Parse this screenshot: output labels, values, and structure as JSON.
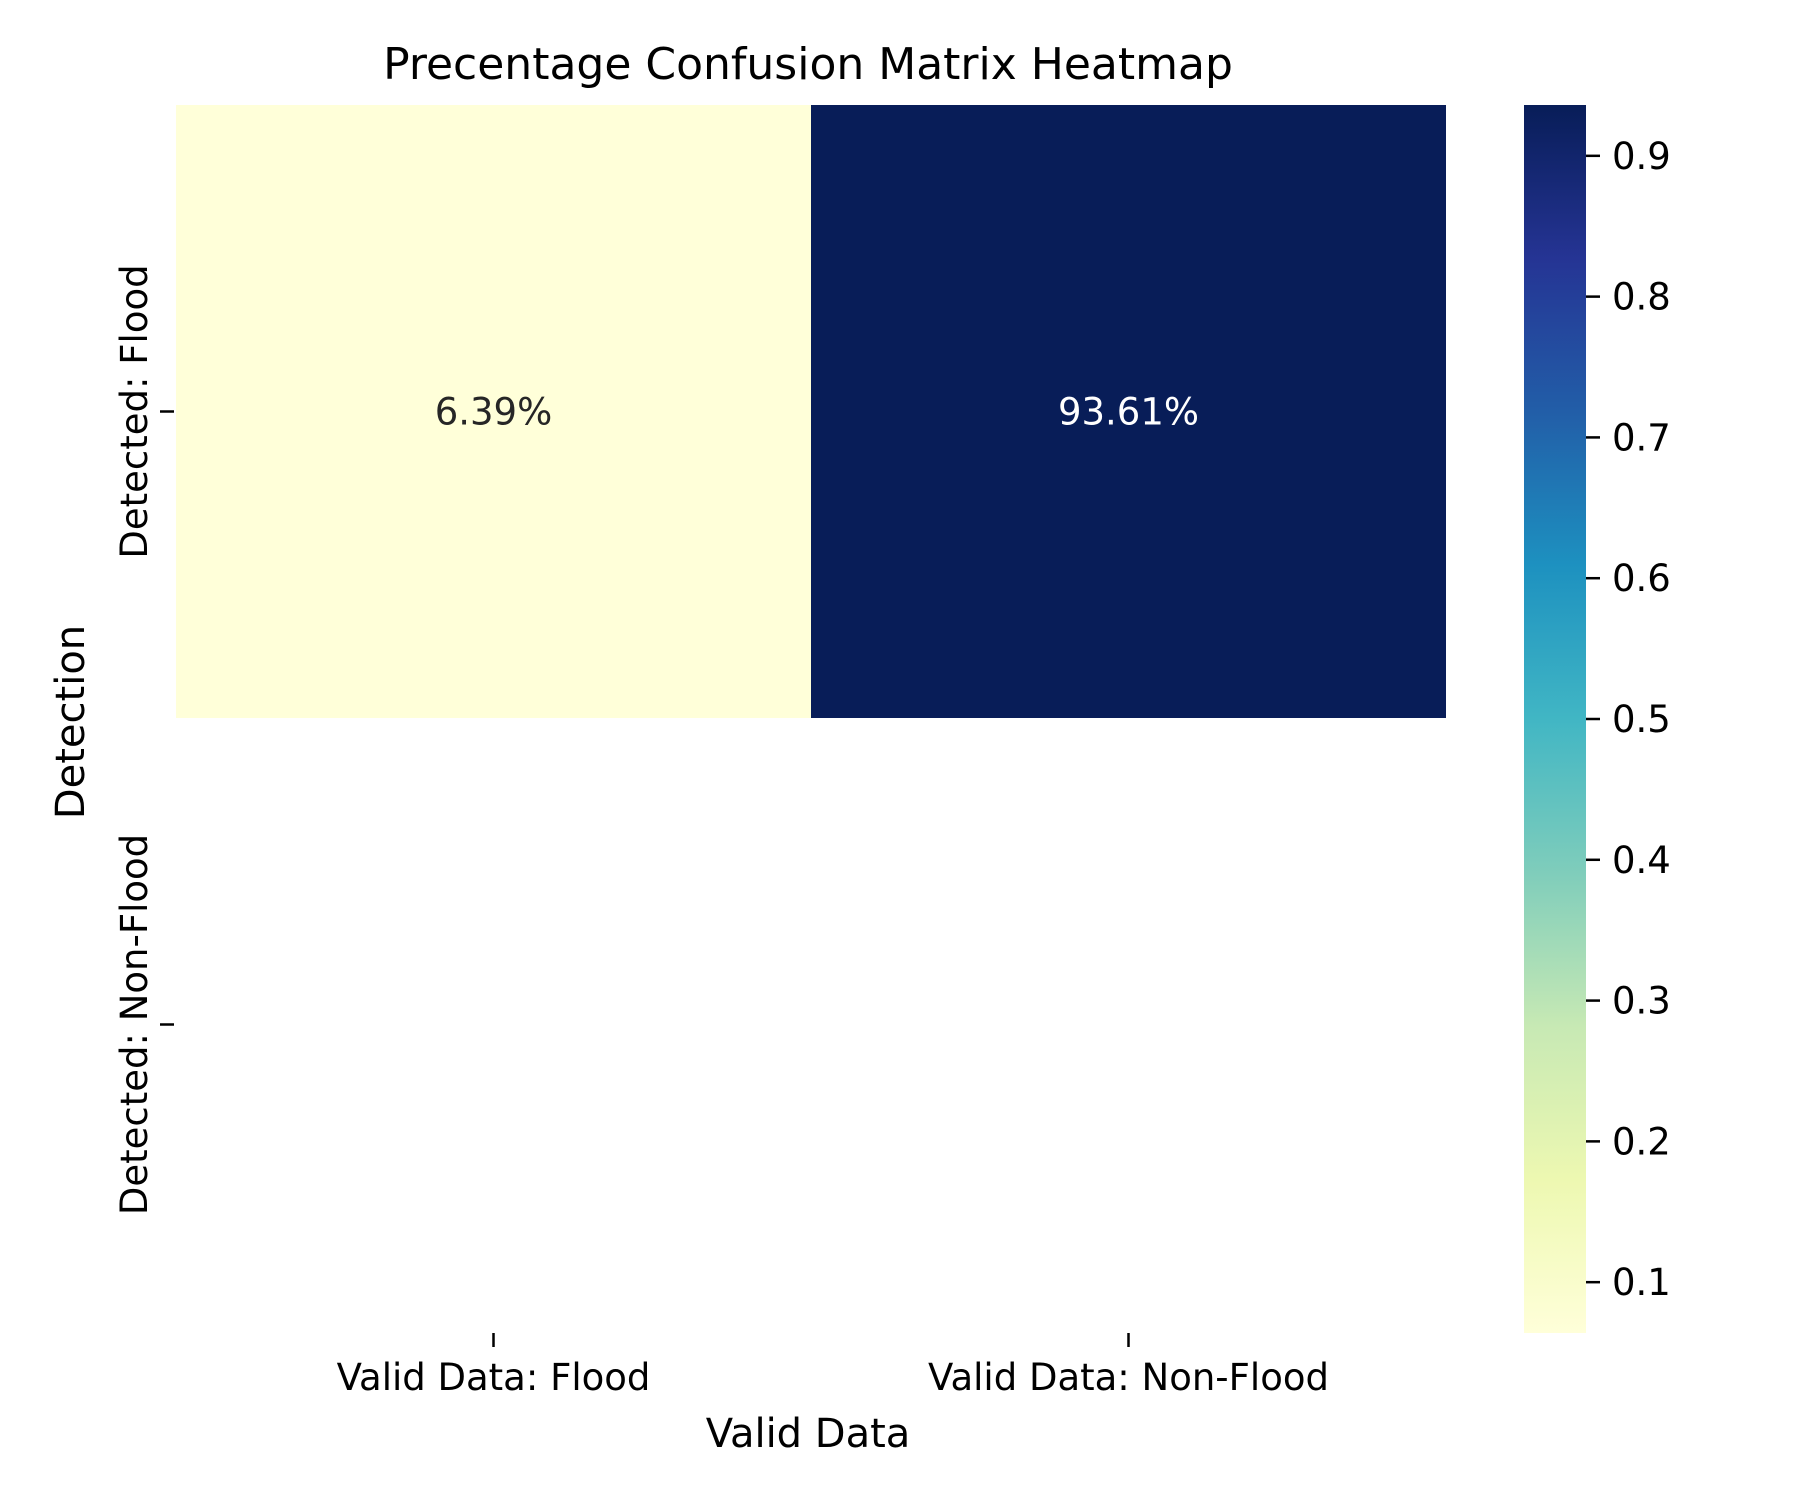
{
  "chart_data": {
    "type": "heatmap",
    "title": "Precentage Confusion Matrix Heatmap",
    "xlabel": "Valid Data",
    "ylabel": "Detection",
    "x_categories": [
      "Valid Data: Flood",
      "Valid Data: Non-Flood"
    ],
    "y_categories": [
      "Detected: Flood",
      "Detected: Non-Flood"
    ],
    "matrix": [
      [
        0.0639,
        0.9361
      ],
      [
        null,
        null
      ]
    ],
    "cell_labels": [
      [
        "6.39%",
        "93.61%"
      ],
      [
        "",
        ""
      ]
    ],
    "colorbar": {
      "colormap": "YlGnBu",
      "range": [
        0.0639,
        0.9361
      ],
      "ticks": [
        0.1,
        0.2,
        0.3,
        0.4,
        0.5,
        0.6,
        0.7,
        0.8,
        0.9
      ],
      "tick_labels": [
        "0.1",
        "0.2",
        "0.3",
        "0.4",
        "0.5",
        "0.6",
        "0.7",
        "0.8",
        "0.9"
      ]
    },
    "colors": {
      "low": "#ffffd9",
      "high": "#081d58",
      "text_dark": "#262626",
      "text_light": "#ffffff"
    }
  }
}
